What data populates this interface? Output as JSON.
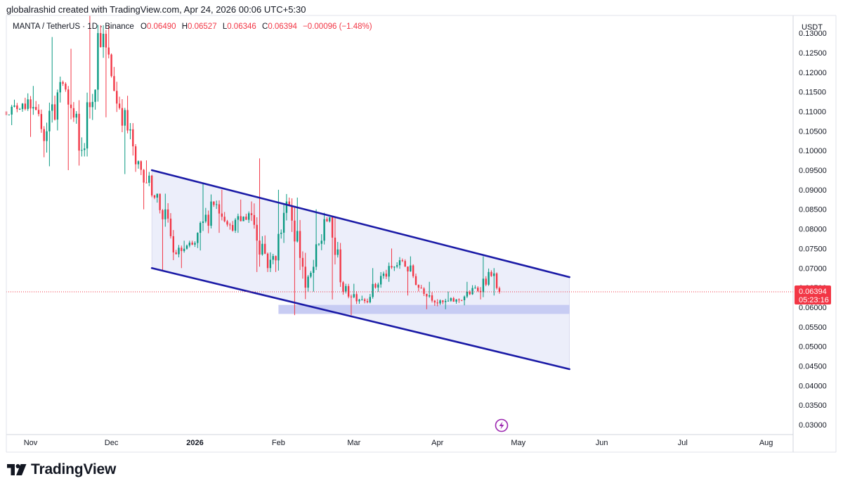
{
  "header": {
    "attribution": "globalrashid created with TradingView.com, Apr 24, 2026 00:06 UTC+5:30"
  },
  "legend": {
    "symbol": "MANTA / TetherUS · 1D · Binance",
    "open_label": "O",
    "open": "0.06490",
    "high_label": "H",
    "high": "0.06527",
    "low_label": "L",
    "low": "0.06346",
    "close_label": "C",
    "close": "0.06394",
    "change": "−0.00096 (−1.48%)"
  },
  "price_scale": {
    "currency": "USDT",
    "last_price": "0.06394",
    "countdown": "05:23:16"
  },
  "footer": {
    "brand": "TradingView"
  },
  "colors": {
    "up": "#089981",
    "down": "#f23645",
    "channel_line": "#1a1aa6",
    "channel_fill": "#eceefa",
    "support_zone": "#c5c9f2",
    "price_line": "#f23645",
    "event_icon": "#9c27b0"
  },
  "chart_data": {
    "type": "candlestick",
    "y_axis": {
      "ticks": [
        "0.03000",
        "0.03500",
        "0.04000",
        "0.04500",
        "0.05000",
        "0.05500",
        "0.06000",
        "0.06500",
        "0.07000",
        "0.07500",
        "0.08000",
        "0.08500",
        "0.09000",
        "0.09500",
        "0.10000",
        "0.10500",
        "0.11000",
        "0.11500",
        "0.12000",
        "0.12500",
        "0.13000"
      ],
      "range": [
        0.0275,
        0.1345
      ]
    },
    "x_axis": {
      "labels": [
        {
          "text": "Nov",
          "date": "2025-11-01"
        },
        {
          "text": "Dec",
          "date": "2025-12-01"
        },
        {
          "text": "2026",
          "date": "2026-01-01",
          "bold": true
        },
        {
          "text": "Feb",
          "date": "2026-02-01"
        },
        {
          "text": "Mar",
          "date": "2026-03-01"
        },
        {
          "text": "Apr",
          "date": "2026-04-01"
        },
        {
          "text": "May",
          "date": "2026-05-01"
        },
        {
          "text": "Jun",
          "date": "2026-06-01"
        },
        {
          "text": "Jul",
          "date": "2026-07-01"
        },
        {
          "text": "Aug",
          "date": "2026-08-01"
        }
      ],
      "range": [
        "2025-10-23",
        "2026-08-11"
      ]
    },
    "series": [
      {
        "points": [
          [
            "2025-10-23",
            0.11,
            0.113,
            0.1065,
            0.112
          ],
          [
            "2025-10-30",
            0.112,
            0.1165,
            0.1035,
            0.1055
          ],
          [
            "2025-11-06",
            0.1055,
            0.129,
            0.096,
            0.1175
          ],
          [
            "2025-11-13",
            0.1175,
            0.126,
            0.095,
            0.1
          ],
          [
            "2025-11-20",
            0.1,
            0.1345,
            0.0985,
            0.13
          ],
          [
            "2025-11-27",
            0.13,
            0.132,
            0.1085,
            0.112
          ],
          [
            "2025-12-04",
            0.112,
            0.114,
            0.094,
            0.0965
          ],
          [
            "2025-12-11",
            0.0965,
            0.0975,
            0.085,
            0.088
          ],
          [
            "2025-12-18",
            0.088,
            0.089,
            0.0695,
            0.074
          ],
          [
            "2025-12-25",
            0.074,
            0.077,
            0.07,
            0.076
          ],
          [
            "2026-01-01",
            0.076,
            0.0915,
            0.0745,
            0.087
          ],
          [
            "2026-01-08",
            0.087,
            0.09,
            0.079,
            0.081
          ],
          [
            "2026-01-15",
            0.081,
            0.0875,
            0.079,
            0.084
          ],
          [
            "2026-01-22",
            0.084,
            0.098,
            0.069,
            0.07
          ],
          [
            "2026-01-29",
            0.07,
            0.09,
            0.069,
            0.087
          ],
          [
            "2026-02-05",
            0.087,
            0.088,
            0.058,
            0.065
          ],
          [
            "2026-02-12",
            0.065,
            0.085,
            0.064,
            0.0825
          ],
          [
            "2026-02-19",
            0.0825,
            0.083,
            0.062,
            0.064
          ],
          [
            "2026-02-26",
            0.064,
            0.066,
            0.058,
            0.062
          ],
          [
            "2026-03-05",
            0.062,
            0.07,
            0.061,
            0.068
          ],
          [
            "2026-03-12",
            0.068,
            0.075,
            0.0665,
            0.072
          ],
          [
            "2026-03-19",
            0.072,
            0.073,
            0.063,
            0.065
          ],
          [
            "2026-03-26",
            0.065,
            0.0665,
            0.0595,
            0.061
          ],
          [
            "2026-04-02",
            0.061,
            0.064,
            0.0595,
            0.062
          ],
          [
            "2026-04-09",
            0.062,
            0.0665,
            0.0605,
            0.065
          ],
          [
            "2026-04-16",
            0.065,
            0.073,
            0.062,
            0.069
          ],
          [
            "2026-04-21",
            0.069,
            0.07,
            0.063,
            0.0649
          ],
          [
            "2026-04-24",
            0.0649,
            0.06527,
            0.06346,
            0.06394
          ]
        ]
      }
    ],
    "drawings": {
      "channel_upper": [
        [
          "2025-12-16",
          0.095
        ],
        [
          "2026-05-20",
          0.0677
        ]
      ],
      "channel_lower": [
        [
          "2025-12-16",
          0.07
        ],
        [
          "2026-05-20",
          0.0442
        ]
      ],
      "support_zone": {
        "from": "2026-02-01",
        "to": "2026-05-20",
        "low": 0.0583,
        "high": 0.0606
      }
    },
    "grid": false
  }
}
